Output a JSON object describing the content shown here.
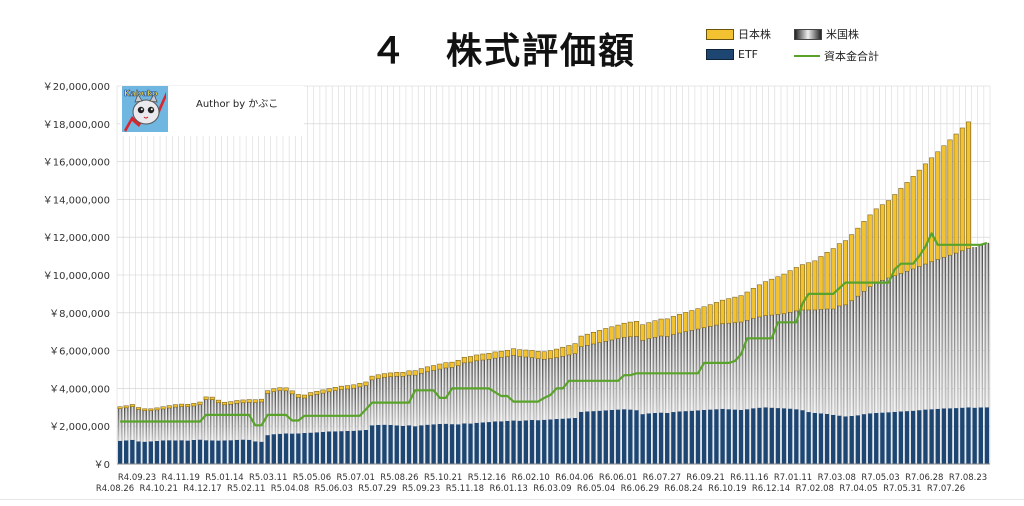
{
  "title": "４　株式評価額",
  "legend": {
    "jp": "日本株",
    "us": "米国株",
    "etf": "ETF",
    "capital": "資本金合計"
  },
  "author_box": {
    "author_text": "Author by かぶこ",
    "logo_text": "Kabuko"
  },
  "colors": {
    "jp": "#f2c230",
    "etf": "#1e4673",
    "capital": "#5aa32b",
    "grid": "#d9d9d9"
  },
  "chart_data": {
    "type": "bar",
    "stacked": true,
    "title": "４　株式評価額",
    "ylim": [
      0,
      20000000
    ],
    "y_ticks": [
      "￥0",
      "￥2,000,000",
      "￥4,000,000",
      "￥6,000,000",
      "￥8,000,000",
      "￥10,000,000",
      "￥12,000,000",
      "￥14,000,000",
      "￥16,000,000",
      "￥18,000,000",
      "￥20,000,000"
    ],
    "x_labels_upper": [
      "R4.09.23",
      "R4.11.19",
      "R5.01.14",
      "R5.03.11",
      "R5.05.06",
      "R5.07.01",
      "R5.08.26",
      "R5.10.21",
      "R5.12.16",
      "R6.02.10",
      "R6.04.06",
      "R6.06.01",
      "R6.07.27",
      "R6.09.21",
      "R6.11.16",
      "R7.01.11",
      "R7.03.08",
      "R7.05.03",
      "R7.06.28",
      "R7.08.23"
    ],
    "x_labels_lower": [
      "R4.08.26",
      "R4.10.21",
      "R4.12.17",
      "R5.02.11",
      "R5.04.08",
      "R5.06.03",
      "R5.07.29",
      "R5.09.23",
      "R5.11.18",
      "R6.01.13",
      "R6.03.09",
      "R6.05.04",
      "R6.06.29",
      "R6.08.24",
      "R6.10.19",
      "R6.12.14",
      "R7.02.08",
      "R7.04.05",
      "R7.05.31",
      "R7.07.26"
    ],
    "grid": true,
    "legend_position": "top-right",
    "series": [
      {
        "name": "ETF",
        "values": [
          1230000,
          1250000,
          1280000,
          1200000,
          1180000,
          1200000,
          1220000,
          1250000,
          1260000,
          1250000,
          1260000,
          1240000,
          1270000,
          1290000,
          1260000,
          1250000,
          1240000,
          1250000,
          1260000,
          1280000,
          1290000,
          1280000,
          1200000,
          1180000,
          1530000,
          1580000,
          1600000,
          1620000,
          1610000,
          1620000,
          1640000,
          1660000,
          1680000,
          1700000,
          1720000,
          1730000,
          1740000,
          1750000,
          1760000,
          1780000,
          1800000,
          2050000,
          2070000,
          2080000,
          2070000,
          2040000,
          2020000,
          2050000,
          2000000,
          2050000,
          2080000,
          2100000,
          2120000,
          2130000,
          2110000,
          2100000,
          2150000,
          2140000,
          2180000,
          2200000,
          2220000,
          2250000,
          2260000,
          2280000,
          2300000,
          2290000,
          2310000,
          2330000,
          2320000,
          2340000,
          2360000,
          2380000,
          2400000,
          2420000,
          2440000,
          2760000,
          2780000,
          2800000,
          2820000,
          2840000,
          2860000,
          2880000,
          2900000,
          2880000,
          2850000,
          2640000,
          2680000,
          2700000,
          2720000,
          2700000,
          2750000,
          2780000,
          2800000,
          2820000,
          2840000,
          2860000,
          2880000,
          2900000,
          2920000,
          2900000,
          2880000,
          2860000,
          2900000,
          2950000,
          2980000,
          3000000,
          2980000,
          2960000,
          2950000,
          2930000,
          2900000,
          2850000,
          2750000,
          2700000,
          2680000,
          2650000,
          2600000,
          2560000,
          2520000,
          2540000,
          2580000,
          2640000,
          2680000,
          2700000,
          2720000,
          2740000,
          2760000,
          2780000,
          2800000,
          2820000,
          2850000,
          2880000,
          2900000,
          2920000,
          2940000,
          2950000,
          2960000,
          2980000,
          3000000,
          2980000,
          2990000,
          3000000
        ]
      },
      {
        "name": "米国株",
        "values": [
          1700000,
          1720000,
          1750000,
          1680000,
          1640000,
          1620000,
          1640000,
          1660000,
          1700000,
          1760000,
          1780000,
          1790000,
          1800000,
          1850000,
          2150000,
          2150000,
          2000000,
          1880000,
          1900000,
          1930000,
          1950000,
          1980000,
          2050000,
          2100000,
          2200000,
          2250000,
          2280000,
          2250000,
          2100000,
          1900000,
          1850000,
          1950000,
          2000000,
          2050000,
          2100000,
          2150000,
          2200000,
          2220000,
          2250000,
          2300000,
          2350000,
          2400000,
          2450000,
          2500000,
          2550000,
          2600000,
          2620000,
          2650000,
          2700000,
          2750000,
          2800000,
          2850000,
          2900000,
          2950000,
          3000000,
          3100000,
          3200000,
          3250000,
          3280000,
          3300000,
          3320000,
          3350000,
          3380000,
          3400000,
          3450000,
          3400000,
          3350000,
          3300000,
          3250000,
          3200000,
          3220000,
          3250000,
          3300000,
          3350000,
          3400000,
          3450000,
          3500000,
          3550000,
          3600000,
          3650000,
          3700000,
          3750000,
          3800000,
          3850000,
          3900000,
          3900000,
          3950000,
          4000000,
          4050000,
          4050000,
          4100000,
          4150000,
          4200000,
          4250000,
          4300000,
          4350000,
          4400000,
          4450000,
          4500000,
          4550000,
          4600000,
          4650000,
          4700000,
          4750000,
          4800000,
          4850000,
          4900000,
          4950000,
          5000000,
          5100000,
          5200000,
          5300000,
          5400000,
          5450000,
          5500000,
          5550000,
          5600000,
          5800000,
          5900000,
          6100000,
          6300000,
          6500000,
          6700000,
          6900000,
          7000000,
          7100000,
          7200000,
          7300000,
          7400000,
          7500000,
          7600000,
          7700000,
          7800000,
          7900000,
          8000000,
          8100000,
          8200000,
          8300000,
          8400000,
          8500000,
          8600000,
          8700000
        ]
      },
      {
        "name": "日本株",
        "values": [
          100000,
          110000,
          120000,
          110000,
          100000,
          100000,
          110000,
          120000,
          130000,
          130000,
          130000,
          130000,
          140000,
          140000,
          140000,
          140000,
          140000,
          140000,
          140000,
          150000,
          150000,
          150000,
          150000,
          150000,
          150000,
          150000,
          160000,
          160000,
          160000,
          160000,
          160000,
          170000,
          170000,
          170000,
          170000,
          180000,
          180000,
          180000,
          180000,
          190000,
          190000,
          200000,
          200000,
          200000,
          200000,
          210000,
          210000,
          230000,
          240000,
          250000,
          260000,
          260000,
          270000,
          280000,
          280000,
          290000,
          300000,
          300000,
          310000,
          320000,
          320000,
          330000,
          330000,
          340000,
          350000,
          360000,
          370000,
          380000,
          390000,
          400000,
          420000,
          450000,
          480000,
          500000,
          530000,
          560000,
          590000,
          620000,
          650000,
          680000,
          700000,
          720000,
          750000,
          780000,
          800000,
          830000,
          850000,
          880000,
          900000,
          930000,
          960000,
          990000,
          1020000,
          1050000,
          1080000,
          1110000,
          1150000,
          1200000,
          1250000,
          1300000,
          1350000,
          1400000,
          1500000,
          1600000,
          1700000,
          1800000,
          1900000,
          2000000,
          2100000,
          2200000,
          2300000,
          2400000,
          2500000,
          2600000,
          2800000,
          3000000,
          3200000,
          3300000,
          3400000,
          3500000,
          3600000,
          3700000,
          3800000,
          3900000,
          4000000,
          4100000,
          4300000,
          4500000,
          4700000,
          4900000,
          5100000,
          5300000,
          5500000,
          5700000,
          5900000,
          6100000,
          6300000,
          6500000,
          6700000
        ]
      },
      {
        "name": "資本金合計",
        "type": "line",
        "values": [
          2250000,
          2250000,
          2250000,
          2250000,
          2250000,
          2250000,
          2250000,
          2250000,
          2250000,
          2250000,
          2250000,
          2250000,
          2250000,
          2250000,
          2600000,
          2600000,
          2600000,
          2600000,
          2600000,
          2600000,
          2600000,
          2600000,
          2050000,
          2050000,
          2600000,
          2600000,
          2600000,
          2600000,
          2300000,
          2300000,
          2550000,
          2550000,
          2550000,
          2550000,
          2550000,
          2550000,
          2550000,
          2550000,
          2550000,
          2550000,
          2900000,
          3250000,
          3250000,
          3250000,
          3250000,
          3250000,
          3250000,
          3250000,
          3900000,
          3900000,
          3900000,
          3900000,
          3500000,
          3500000,
          4000000,
          4000000,
          4000000,
          4000000,
          4000000,
          4000000,
          4000000,
          3800000,
          3600000,
          3600000,
          3300000,
          3300000,
          3300000,
          3300000,
          3300000,
          3500000,
          3650000,
          4000000,
          4000000,
          4400000,
          4400000,
          4400000,
          4400000,
          4400000,
          4400000,
          4400000,
          4400000,
          4400000,
          4700000,
          4700000,
          4800000,
          4800000,
          4800000,
          4800000,
          4800000,
          4800000,
          4800000,
          4800000,
          4800000,
          4800000,
          4800000,
          5350000,
          5350000,
          5350000,
          5350000,
          5350000,
          5450000,
          5800000,
          6650000,
          6650000,
          6650000,
          6650000,
          6650000,
          7500000,
          7500000,
          7500000,
          7500000,
          8500000,
          9000000,
          9000000,
          9000000,
          9000000,
          9000000,
          9300000,
          9600000,
          9600000,
          9600000,
          9600000,
          9600000,
          9600000,
          9600000,
          9600000,
          10300000,
          10600000,
          10600000,
          10600000,
          11000000,
          11500000,
          12200000,
          11600000,
          11600000,
          11600000,
          11600000,
          11600000,
          11600000,
          11600000,
          11600000,
          11700000,
          11700000
        ]
      }
    ]
  }
}
